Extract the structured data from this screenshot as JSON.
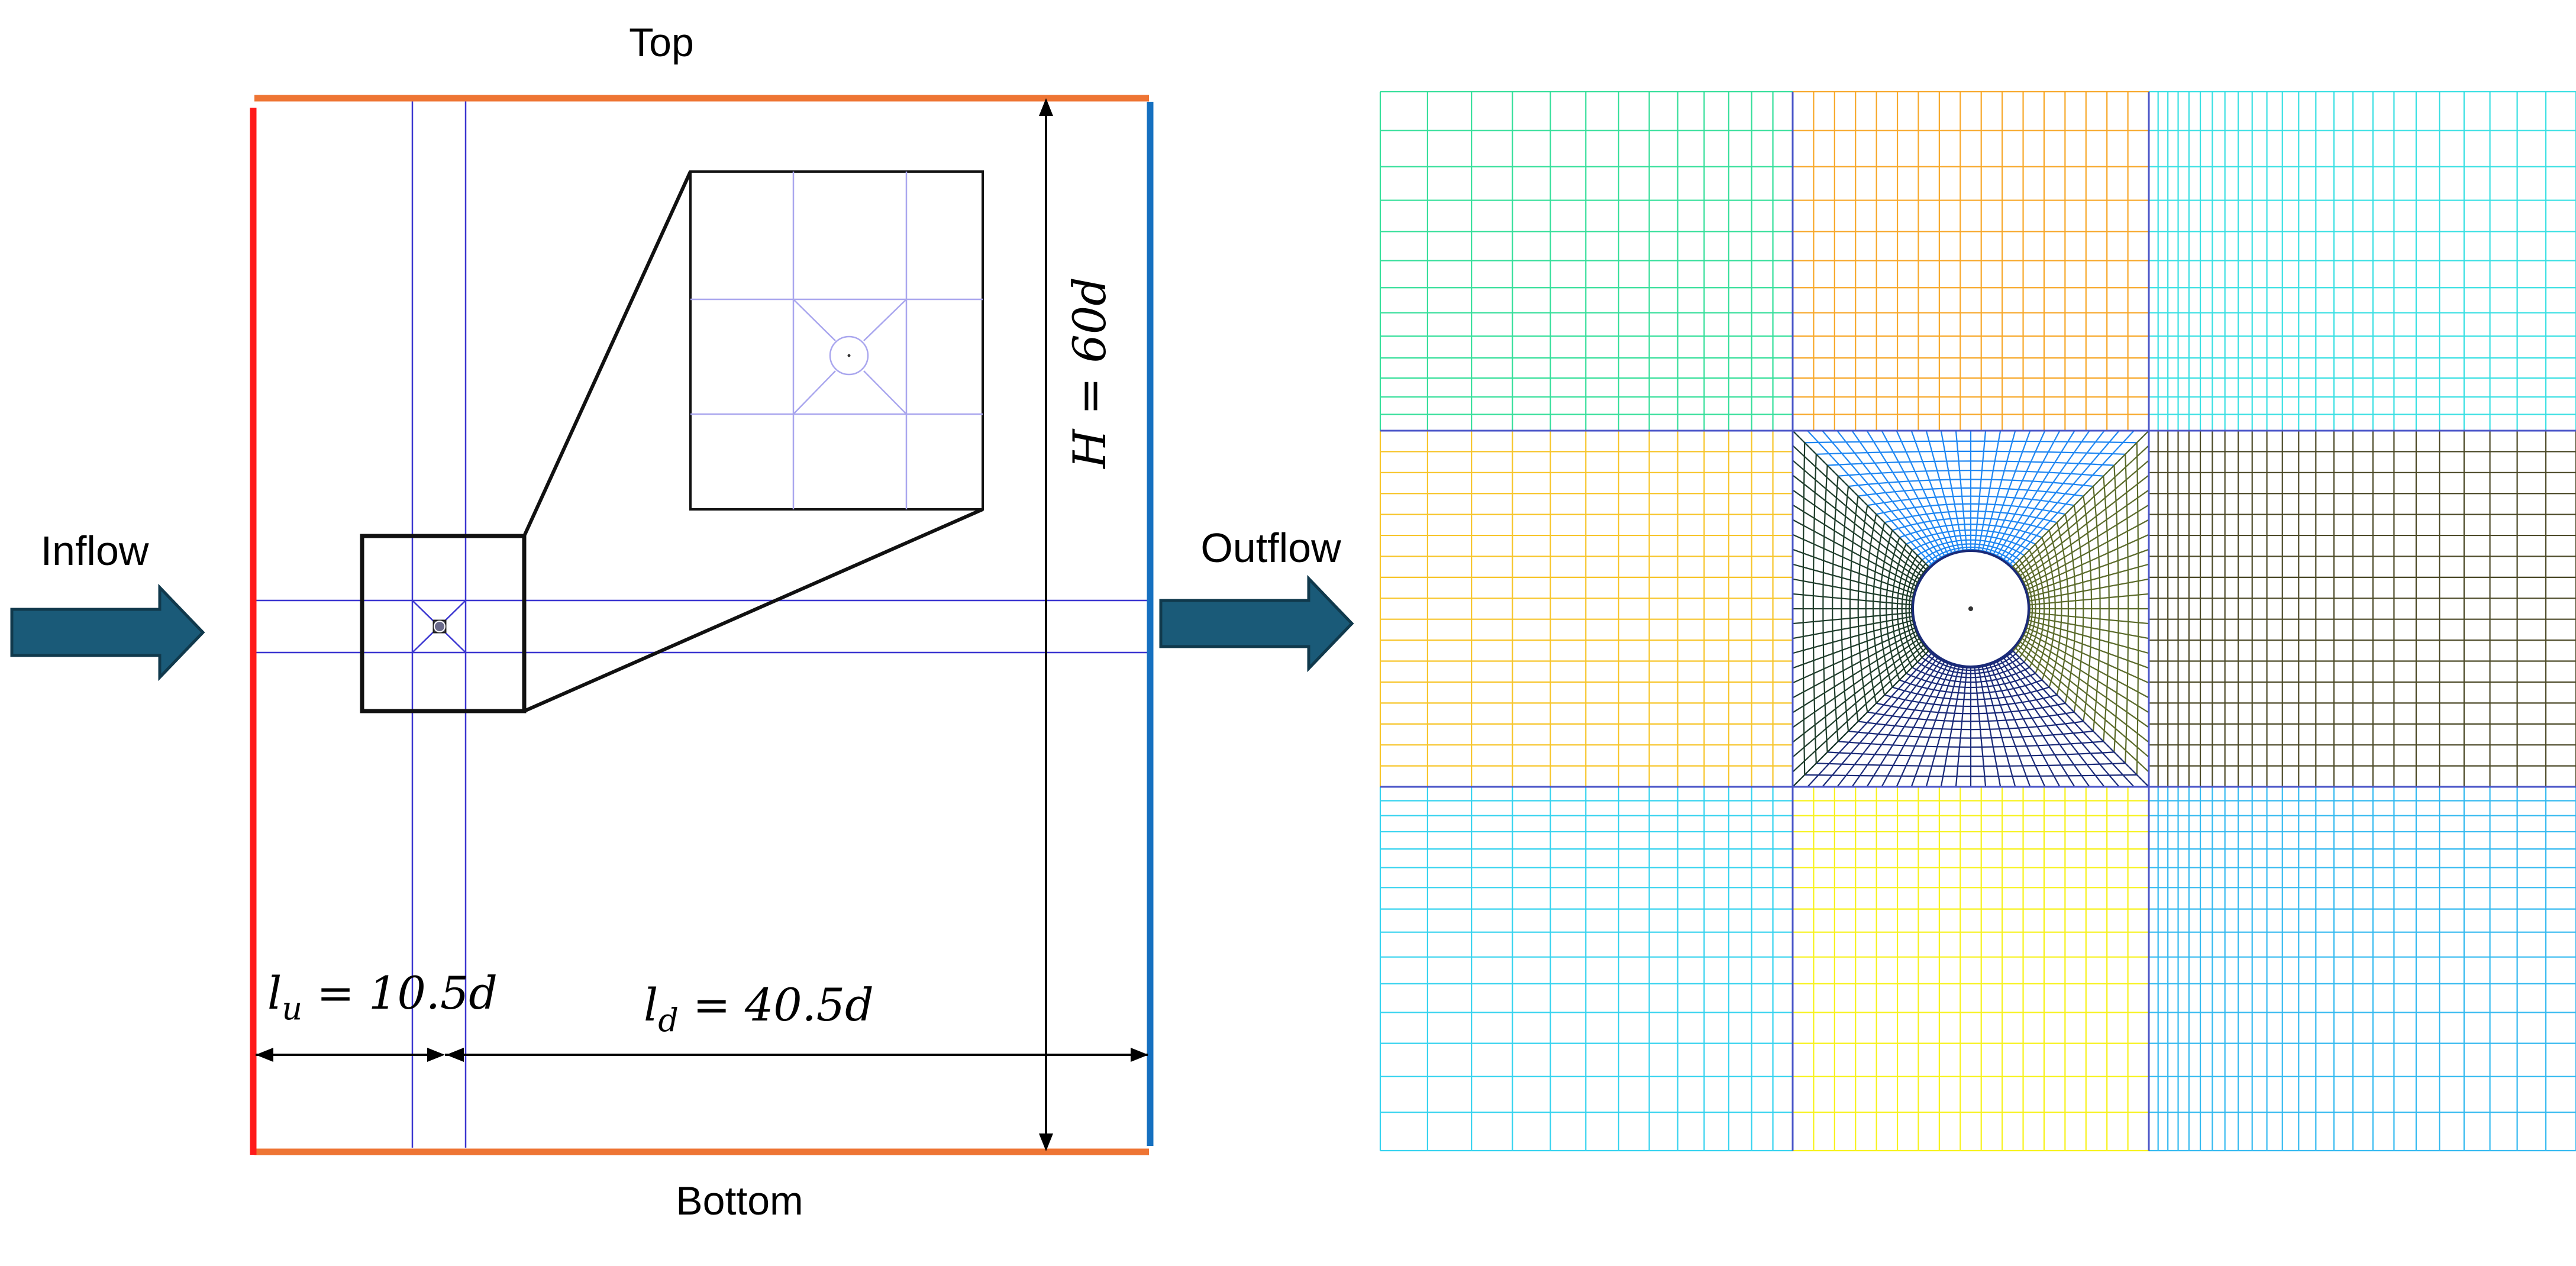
{
  "labels": {
    "top": "Top",
    "bottom": "Bottom",
    "inflow": "Inflow",
    "outflow": "Outflow"
  },
  "dimensions": {
    "height": "H = 60d",
    "upstream": "l",
    "upstream_sub": "u",
    "upstream_eq": " = 10.5d",
    "downstream": "l",
    "downstream_sub": "d",
    "downstream_eq": " = 40.5d"
  },
  "colors": {
    "inlet": "#ff1a1a",
    "outlet": "#1570c0",
    "top_bottom": "#ee7534",
    "block_lines": "#3a35d0",
    "arrow_fill": "#1a5a78",
    "arrow_stroke": "#10394c",
    "mesh_top_left": "#35df9a",
    "mesh_top_center": "#f7a82a",
    "mesh_top_right": "#3ae0e3",
    "mesh_mid_left": "#f7c52a",
    "mesh_mid_right": "#4c4a28",
    "mesh_bottom_left": "#35d3ef",
    "mesh_bottom_center": "#f7f21c",
    "mesh_bottom_right": "#35baf0",
    "mesh_ring_top": "#1e86f2",
    "mesh_ring_left": "#1e3c2a",
    "mesh_ring_right": "#5a6a2a",
    "mesh_ring_bottom": "#1a2a78",
    "mesh_block_border": "#4a55c8"
  }
}
